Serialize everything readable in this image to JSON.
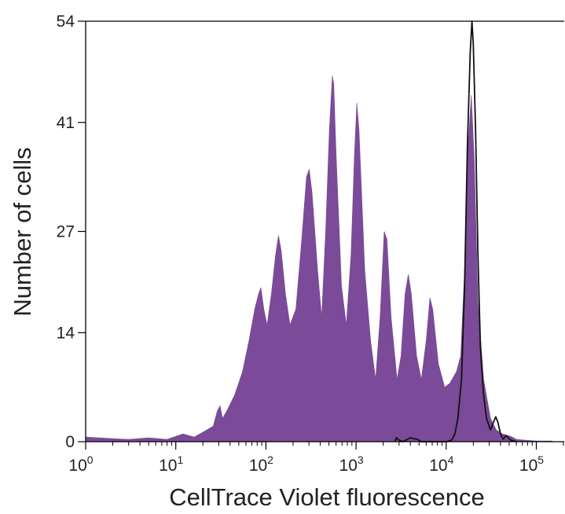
{
  "chart_data": {
    "type": "area",
    "title": "",
    "xlabel": "CellTrace Violet fluorescence",
    "ylabel": "Number of cells",
    "x_scale": "log",
    "xlim": [
      1,
      150000
    ],
    "ylim": [
      0,
      54
    ],
    "x_ticks": [
      {
        "value": 1,
        "base": "10",
        "exp": "0"
      },
      {
        "value": 10,
        "base": "10",
        "exp": "1"
      },
      {
        "value": 100,
        "base": "10",
        "exp": "2"
      },
      {
        "value": 1000,
        "base": "10",
        "exp": "3"
      },
      {
        "value": 10000,
        "base": "10",
        "exp": "4"
      },
      {
        "value": 100000,
        "base": "10",
        "exp": "5"
      }
    ],
    "y_ticks": [
      {
        "value": 0,
        "label": "0"
      },
      {
        "value": 14,
        "label": "14"
      },
      {
        "value": 27,
        "label": "27"
      },
      {
        "value": 41,
        "label": "41"
      },
      {
        "value": 54,
        "label": "54"
      }
    ],
    "grid": false,
    "series": [
      {
        "style": "filled",
        "color": "#7b4a98",
        "points": [
          [
            1,
            0.6
          ],
          [
            2,
            0.4
          ],
          [
            3,
            0.3
          ],
          [
            5,
            0.5
          ],
          [
            8,
            0.3
          ],
          [
            12,
            1
          ],
          [
            16,
            0.6
          ],
          [
            22,
            1.5
          ],
          [
            26,
            2
          ],
          [
            29,
            4
          ],
          [
            31,
            4.6
          ],
          [
            33,
            3
          ],
          [
            37,
            4
          ],
          [
            45,
            6
          ],
          [
            55,
            9
          ],
          [
            65,
            13
          ],
          [
            75,
            17
          ],
          [
            83,
            19
          ],
          [
            88,
            19.8
          ],
          [
            95,
            17
          ],
          [
            103,
            15
          ],
          [
            115,
            19
          ],
          [
            128,
            24
          ],
          [
            138,
            26.5
          ],
          [
            148,
            24.5
          ],
          [
            165,
            19
          ],
          [
            185,
            15
          ],
          [
            215,
            17
          ],
          [
            250,
            26
          ],
          [
            282,
            34
          ],
          [
            302,
            35
          ],
          [
            325,
            32
          ],
          [
            375,
            22
          ],
          [
            415,
            16
          ],
          [
            460,
            27
          ],
          [
            505,
            40
          ],
          [
            545,
            47
          ],
          [
            565,
            46
          ],
          [
            600,
            37
          ],
          [
            690,
            20
          ],
          [
            780,
            15
          ],
          [
            880,
            24
          ],
          [
            960,
            37
          ],
          [
            1020,
            43.5
          ],
          [
            1080,
            40
          ],
          [
            1250,
            22
          ],
          [
            1450,
            13
          ],
          [
            1650,
            8
          ],
          [
            1850,
            16
          ],
          [
            2050,
            27
          ],
          [
            2200,
            26
          ],
          [
            2450,
            16
          ],
          [
            2850,
            8
          ],
          [
            3150,
            11
          ],
          [
            3500,
            19
          ],
          [
            3800,
            21.5
          ],
          [
            4100,
            19
          ],
          [
            4700,
            11
          ],
          [
            5300,
            8
          ],
          [
            6000,
            13
          ],
          [
            6600,
            18.5
          ],
          [
            7100,
            17
          ],
          [
            8200,
            10
          ],
          [
            9600,
            7
          ],
          [
            11000,
            7.5
          ],
          [
            13000,
            9
          ],
          [
            14500,
            11
          ],
          [
            16000,
            22
          ],
          [
            17500,
            38
          ],
          [
            19000,
            44.5
          ],
          [
            20500,
            36
          ],
          [
            22500,
            18
          ],
          [
            26000,
            8
          ],
          [
            31000,
            3
          ],
          [
            36000,
            1.5
          ],
          [
            42000,
            1
          ],
          [
            52000,
            0.7
          ],
          [
            60000,
            0.3
          ],
          [
            75000,
            0.2
          ],
          [
            100000,
            0.1
          ],
          [
            150000,
            0.1
          ]
        ]
      },
      {
        "style": "line",
        "color": "#111111",
        "points": [
          [
            2700,
            0
          ],
          [
            2800,
            0.5
          ],
          [
            3000,
            0.2
          ],
          [
            3300,
            0
          ],
          [
            4000,
            0.5
          ],
          [
            4800,
            0.3
          ],
          [
            5300,
            0
          ],
          [
            10000,
            0
          ],
          [
            11500,
            0.2
          ],
          [
            12500,
            1
          ],
          [
            13500,
            3
          ],
          [
            14800,
            8
          ],
          [
            16000,
            20
          ],
          [
            17200,
            38
          ],
          [
            18500,
            50
          ],
          [
            19300,
            54
          ],
          [
            20000,
            51
          ],
          [
            21200,
            40
          ],
          [
            22500,
            24
          ],
          [
            24000,
            12
          ],
          [
            26000,
            6
          ],
          [
            28000,
            3
          ],
          [
            31000,
            1.5
          ],
          [
            33500,
            2.5
          ],
          [
            35500,
            3.2
          ],
          [
            37500,
            2.5
          ],
          [
            40000,
            1
          ],
          [
            43000,
            0.3
          ],
          [
            46000,
            0.8
          ],
          [
            52000,
            0.2
          ],
          [
            60000,
            0
          ]
        ]
      }
    ]
  }
}
